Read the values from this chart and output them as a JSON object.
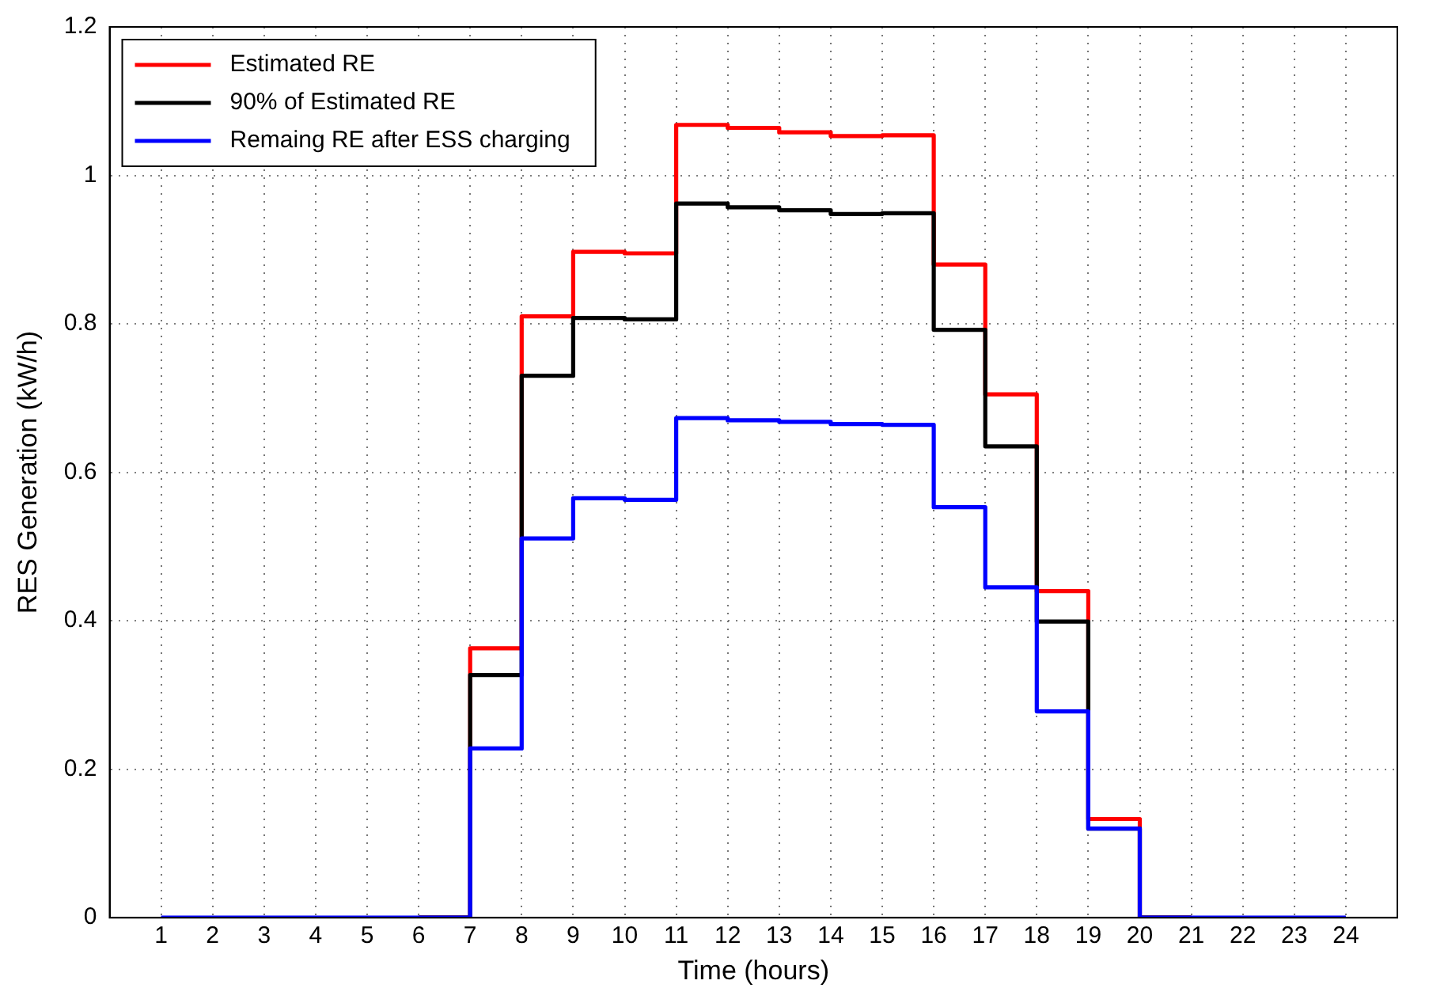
{
  "chart_data": {
    "type": "step",
    "xlabel": "Time (hours)",
    "ylabel": "RES Generation (kW/h)",
    "x": [
      1,
      2,
      3,
      4,
      5,
      6,
      7,
      8,
      9,
      10,
      11,
      12,
      13,
      14,
      15,
      16,
      17,
      18,
      19,
      20,
      21,
      22,
      23,
      24
    ],
    "series": [
      {
        "name": "Estimated RE",
        "color": "#ff0000",
        "values": [
          null,
          null,
          null,
          null,
          null,
          0,
          0.363,
          0.81,
          0.897,
          0.895,
          1.068,
          1.064,
          1.058,
          1.053,
          1.054,
          0.88,
          0.705,
          0.44,
          0.133,
          0,
          0,
          null,
          null,
          null
        ]
      },
      {
        "name": "90% of Estimated RE",
        "color": "#000000",
        "values": [
          null,
          null,
          null,
          null,
          null,
          0,
          0.327,
          0.73,
          0.808,
          0.806,
          0.962,
          0.957,
          0.953,
          0.948,
          0.949,
          0.792,
          0.635,
          0.399,
          0.12,
          0,
          0,
          null,
          null,
          null
        ]
      },
      {
        "name": "Remaing RE after ESS charging",
        "color": "#0000ff",
        "values": [
          0,
          0,
          0,
          0,
          0,
          0,
          0.228,
          0.511,
          0.565,
          0.563,
          0.673,
          0.67,
          0.668,
          0.665,
          0.664,
          0.553,
          0.445,
          0.278,
          0.12,
          0,
          0,
          0,
          0,
          0
        ]
      }
    ],
    "xlim": [
      0,
      25
    ],
    "xticks": [
      1,
      2,
      3,
      4,
      5,
      6,
      7,
      8,
      9,
      10,
      11,
      12,
      13,
      14,
      15,
      16,
      17,
      18,
      19,
      20,
      21,
      22,
      23,
      24
    ],
    "ylim": [
      0,
      1.2
    ],
    "yticks": [
      0,
      0.2,
      0.4,
      0.6,
      0.8,
      1,
      1.2
    ],
    "grid": true,
    "legend": "top left",
    "marker": "none",
    "line_style": "solid"
  }
}
